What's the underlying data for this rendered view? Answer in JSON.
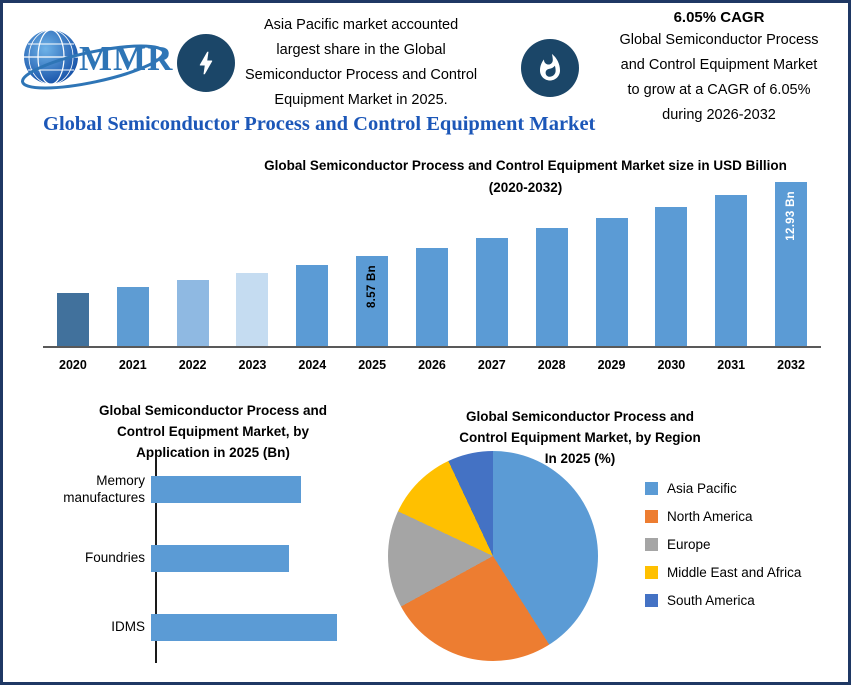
{
  "page_title": "Global Semiconductor Process and Control Equipment Market",
  "colors": {
    "border_navy": "#1F3864",
    "title_blue": "#1C57B8",
    "logo_blue": "#2E75B6",
    "icon_circle_navy": "#1B4668",
    "bar_blue": "#5B9BD5",
    "orange": "#ED7D31",
    "gray": "#A5A5A5",
    "gold": "#FFC000",
    "dark_blue": "#4472C4"
  },
  "header": {
    "logo": {
      "text": "MMR",
      "icon": "globe-icon"
    },
    "callout1": {
      "icon": "lightning-icon",
      "text": "Asia Pacific market accounted\nlargest share in the Global\nSemiconductor Process and Control\nEquipment Market in 2025."
    },
    "callout2": {
      "icon": "flame-icon",
      "heading": "6.05% CAGR",
      "text": "Global Semiconductor Process\nand Control Equipment Market\nto grow at a CAGR of 6.05%\nduring 2026-2032"
    }
  },
  "chart_data": [
    {
      "type": "bar",
      "title": "Global Semiconductor Process and Control Equipment Market size in USD Billion",
      "subtitle": "(2020-2032)",
      "ylabel": "USD Billion",
      "categories": [
        "2020",
        "2021",
        "2022",
        "2023",
        "2024",
        "2025",
        "2026",
        "2027",
        "2028",
        "2029",
        "2030",
        "2031",
        "2032"
      ],
      "values": [
        6.4,
        6.78,
        7.19,
        7.62,
        8.08,
        8.57,
        9.09,
        9.64,
        10.22,
        10.84,
        11.49,
        12.19,
        12.93
      ],
      "bar_colors": [
        "#41719C",
        "#5E9CD3",
        "#8FB9E2",
        "#C5DCF1",
        "#5B9BD5",
        "#5B9BD5",
        "#5B9BD5",
        "#5B9BD5",
        "#5B9BD5",
        "#5B9BD5",
        "#5B9BD5",
        "#5B9BD5",
        "#5B9BD5"
      ],
      "value_labels": {
        "5": {
          "text": "8.57 Bn",
          "color": "#000000"
        },
        "12": {
          "text": "12.93 Bn",
          "color": "#FFFFFF"
        }
      }
    },
    {
      "type": "bar-horizontal",
      "title": "Global Semiconductor Process and\nControl Equipment Market, by\nApplication in 2025 (Bn)",
      "categories": [
        "Memory\nmanufactures",
        "Foundries",
        "IDMS"
      ],
      "values": [
        2.5,
        2.3,
        3.1
      ],
      "bar_color": "#5B9BD5"
    },
    {
      "type": "pie",
      "title": "Global Semiconductor Process and\nControl Equipment Market, by Region\nIn 2025 (%)",
      "legend_position": "right",
      "segments": [
        {
          "label": "Asia Pacific",
          "value": 41,
          "color": "#5B9BD5"
        },
        {
          "label": "North America",
          "value": 26,
          "color": "#ED7D31"
        },
        {
          "label": "Europe",
          "value": 15,
          "color": "#A5A5A5"
        },
        {
          "label": "Middle East and Africa",
          "value": 11,
          "color": "#FFC000"
        },
        {
          "label": "South America",
          "value": 7,
          "color": "#4472C4"
        }
      ]
    }
  ]
}
